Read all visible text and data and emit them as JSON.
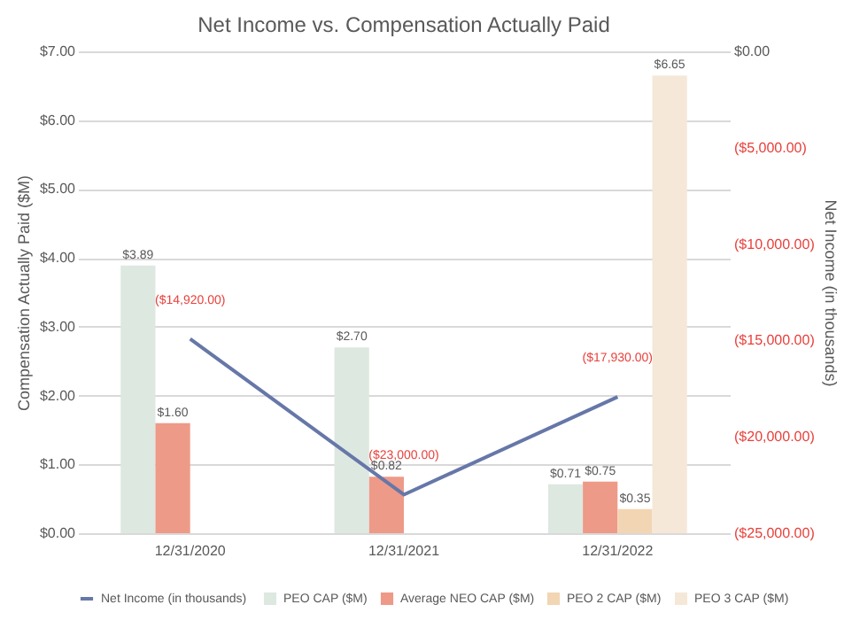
{
  "chart_data": {
    "type": "bar",
    "title": "Net Income vs. Compensation Actually Paid",
    "categories": [
      "12/31/2020",
      "12/31/2021",
      "12/31/2022"
    ],
    "ylabel": "Compensation Actually Paid ($M)",
    "y2label": "Net Income (in thousands)",
    "series": [
      {
        "name": "PEO CAP ($M)",
        "color": "#dde8e1",
        "values": [
          3.89,
          2.7,
          0.71
        ],
        "value_labels": [
          "$3.89",
          "$2.70",
          "$0.71"
        ]
      },
      {
        "name": "Average NEO CAP ($M)",
        "color": "#ee9a88",
        "values": [
          1.6,
          0.82,
          0.75
        ],
        "value_labels": [
          "$1.60",
          "$0.82",
          "$0.75"
        ]
      },
      {
        "name": "PEO 2 CAP ($M)",
        "color": "#f2d5b3",
        "values": [
          null,
          null,
          0.35
        ],
        "value_labels": [
          null,
          null,
          "$0.35"
        ]
      },
      {
        "name": "PEO 3 CAP ($M)",
        "color": "#f5e8d8",
        "values": [
          null,
          null,
          6.65
        ],
        "value_labels": [
          null,
          null,
          "$6.65"
        ]
      },
      {
        "name": "Net Income (in thousands)",
        "type": "line",
        "axis": "y2",
        "color": "#6677a8",
        "values": [
          -14920,
          -23000,
          -17930
        ],
        "value_labels": [
          "($14,920.00)",
          "($23,000.00)",
          "($17,930.00)"
        ]
      }
    ],
    "ylim": [
      0,
      7
    ],
    "yticks": [
      {
        "value": 0,
        "label": "$0.00"
      },
      {
        "value": 1,
        "label": "$1.00"
      },
      {
        "value": 2,
        "label": "$2.00"
      },
      {
        "value": 3,
        "label": "$3.00"
      },
      {
        "value": 4,
        "label": "$4.00"
      },
      {
        "value": 5,
        "label": "$5.00"
      },
      {
        "value": 6,
        "label": "$6.00"
      },
      {
        "value": 7,
        "label": "$7.00"
      }
    ],
    "y2lim": [
      -25000,
      0
    ],
    "y2ticks": [
      {
        "value": -25000,
        "label": "($25,000.00)"
      },
      {
        "value": -20000,
        "label": "($20,000.00)"
      },
      {
        "value": -15000,
        "label": "($15,000.00)"
      },
      {
        "value": -10000,
        "label": "($10,000.00)"
      },
      {
        "value": -5000,
        "label": "($5,000.00)"
      },
      {
        "value": 0,
        "label": "$0.00"
      }
    ],
    "grid": "y",
    "legend": "bottom",
    "marker": "none",
    "line_style": "solid"
  }
}
